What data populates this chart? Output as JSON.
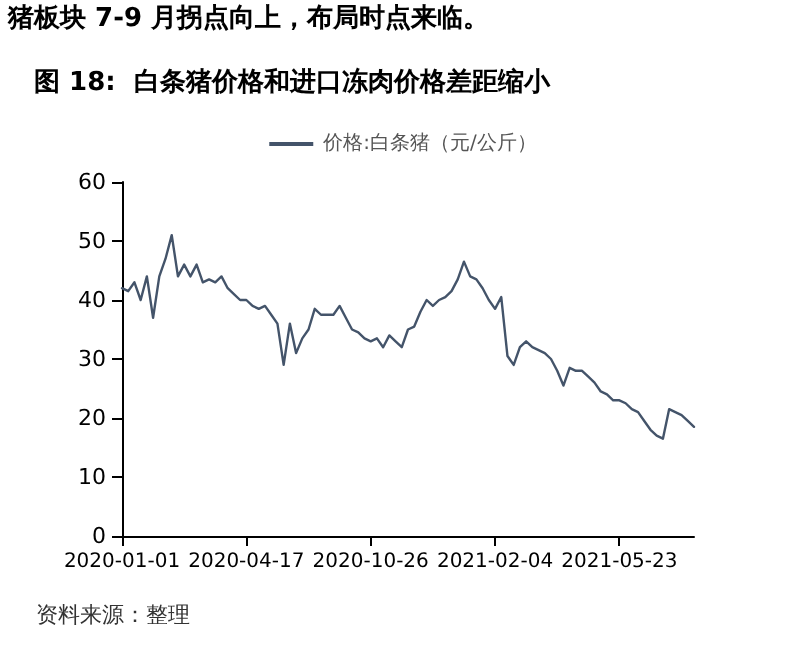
{
  "chart_data": {
    "type": "line",
    "title": "图 18:  白条猪价格和进口冻肉价格差距缩小",
    "annotations": [
      "猪板块 7-9 月拐点向上，布局时点来临。",
      "资料来源：整理"
    ],
    "categories": [
      "2020-01-01",
      null,
      null,
      null,
      null,
      null,
      null,
      null,
      null,
      null,
      null,
      null,
      null,
      null,
      null,
      null,
      null,
      null,
      null,
      null,
      "2020-04-17",
      null,
      null,
      null,
      null,
      null,
      null,
      null,
      null,
      null,
      null,
      null,
      null,
      null,
      null,
      null,
      null,
      null,
      null,
      null,
      "2020-10-26",
      null,
      null,
      null,
      null,
      null,
      null,
      null,
      null,
      null,
      null,
      null,
      null,
      null,
      null,
      null,
      null,
      null,
      null,
      null,
      "2021-02-04",
      null,
      null,
      null,
      null,
      null,
      null,
      null,
      null,
      null,
      null,
      null,
      null,
      null,
      null,
      null,
      null,
      null,
      null,
      null,
      "2021-05-23",
      null,
      null,
      null,
      null,
      null,
      null,
      null,
      null,
      null,
      null,
      null,
      null
    ],
    "series": [
      {
        "name": "价格:白条猪（元/公斤）",
        "color": "#44546a",
        "values": [
          42,
          41.5,
          43,
          40,
          44,
          37,
          44,
          47,
          51,
          44,
          46,
          44,
          46,
          43,
          43.5,
          43,
          44,
          42,
          41,
          40,
          40,
          39,
          38.5,
          39,
          37.5,
          36,
          29,
          36,
          31,
          33.5,
          35,
          38.5,
          37.5,
          37.5,
          37.5,
          39,
          37,
          35,
          34.5,
          33.5,
          33,
          33.5,
          32,
          34,
          33,
          32,
          35,
          35.5,
          38,
          40,
          39,
          40,
          40.5,
          41.5,
          43.5,
          46.5,
          44,
          43.5,
          42,
          40,
          38.5,
          40.5,
          30.5,
          29,
          32,
          33,
          32,
          31.5,
          31,
          30,
          28,
          25.5,
          28.5,
          28,
          28,
          27,
          26,
          24.5,
          24,
          23,
          23,
          22.5,
          21.5,
          21,
          19.5,
          18,
          17,
          16.5,
          21.5,
          21,
          20.5,
          19.5,
          18.5
        ]
      }
    ],
    "ylim": [
      0,
      60
    ],
    "yticks": [
      0,
      10,
      20,
      30,
      40,
      50,
      60
    ],
    "grid": false,
    "legend": "top",
    "marker": "none",
    "line_style": "solid"
  }
}
